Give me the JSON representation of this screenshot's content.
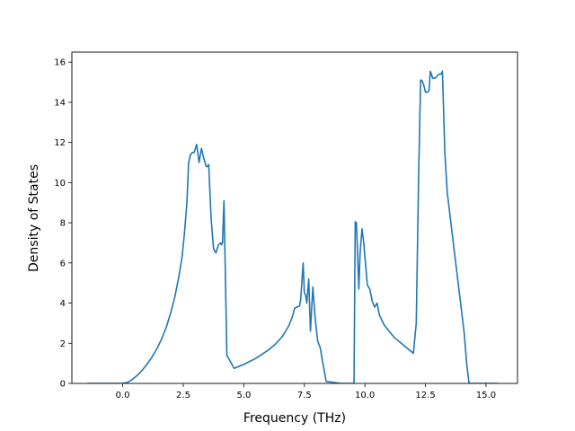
{
  "chart_data": {
    "type": "line",
    "title": "",
    "xlabel": "Frequency (THz)",
    "ylabel": "Density of States",
    "xlim": [
      -2.1,
      16.3
    ],
    "ylim": [
      0,
      16.5
    ],
    "xticks": [
      0.0,
      2.5,
      5.0,
      7.5,
      10.0,
      12.5,
      15.0
    ],
    "xtick_labels": [
      "0.0",
      "2.5",
      "5.0",
      "7.5",
      "10.0",
      "12.5",
      "15.0"
    ],
    "yticks": [
      0,
      2,
      4,
      6,
      8,
      10,
      12,
      14,
      16
    ],
    "ytick_labels": [
      "0",
      "2",
      "4",
      "6",
      "8",
      "10",
      "12",
      "14",
      "16"
    ],
    "grid": false,
    "colors": {
      "line": "#1f77b4"
    },
    "series": [
      {
        "x": [
          -1.45,
          -0.5,
          0.0,
          0.2,
          0.4,
          0.6,
          0.8,
          1.0,
          1.2,
          1.4,
          1.6,
          1.8,
          2.0,
          2.15,
          2.3,
          2.45,
          2.55,
          2.65,
          2.72,
          2.8,
          2.88,
          2.95,
          3.05,
          3.1,
          3.15,
          3.25,
          3.35,
          3.45,
          3.5,
          3.55,
          3.65,
          3.75,
          3.85,
          3.95,
          4.05,
          4.08,
          4.12,
          4.18,
          4.3,
          4.6,
          5.0,
          5.5,
          6.0,
          6.3,
          6.6,
          6.85,
          7.0,
          7.1,
          7.2,
          7.3,
          7.35,
          7.45,
          7.5,
          7.55,
          7.6,
          7.68,
          7.75,
          7.85,
          7.95,
          8.05,
          8.15,
          8.25,
          8.4,
          9.0,
          9.55,
          9.6,
          9.65,
          9.75,
          9.8,
          9.88,
          9.95,
          10.1,
          10.2,
          10.3,
          10.4,
          10.5,
          10.6,
          10.8,
          11.2,
          11.6,
          12.0,
          12.12,
          12.22,
          12.3,
          12.35,
          12.42,
          12.5,
          12.58,
          12.65,
          12.7,
          12.8,
          12.9,
          13.05,
          13.15,
          13.2,
          13.3,
          13.4,
          13.7,
          13.95,
          14.1,
          14.2,
          14.3,
          15.5
        ],
        "y": [
          0,
          0,
          0,
          0.05,
          0.2,
          0.4,
          0.65,
          0.95,
          1.3,
          1.7,
          2.2,
          2.8,
          3.6,
          4.3,
          5.2,
          6.3,
          7.5,
          9.0,
          11.0,
          11.4,
          11.5,
          11.5,
          11.9,
          11.5,
          11.0,
          11.7,
          11.2,
          10.8,
          10.8,
          10.9,
          8.2,
          6.7,
          6.5,
          6.9,
          7.0,
          6.9,
          7.0,
          9.1,
          1.4,
          0.75,
          0.95,
          1.25,
          1.65,
          1.95,
          2.35,
          2.85,
          3.3,
          3.75,
          3.8,
          3.85,
          4.2,
          6.0,
          4.5,
          4.4,
          4.0,
          5.2,
          2.6,
          4.8,
          3.2,
          2.1,
          1.8,
          1.1,
          0.1,
          0,
          0,
          8.05,
          8.0,
          4.7,
          6.5,
          7.7,
          7.0,
          4.9,
          4.7,
          4.1,
          3.8,
          4.0,
          3.4,
          2.9,
          2.3,
          1.9,
          1.5,
          3.0,
          10.5,
          15.1,
          15.1,
          14.9,
          14.5,
          14.5,
          14.6,
          15.55,
          15.2,
          15.2,
          15.4,
          15.4,
          15.55,
          11.5,
          9.5,
          6.5,
          4.0,
          2.5,
          1.0,
          0,
          0
        ]
      }
    ]
  }
}
